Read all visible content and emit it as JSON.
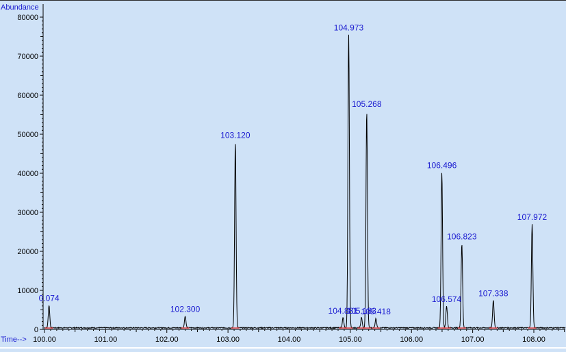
{
  "chart_data": {
    "type": "line",
    "ylabel": "Abundance",
    "xlabel": "Time-->",
    "xlim": [
      100.0,
      108.7
    ],
    "ylim": [
      0,
      81000
    ],
    "x_ticks": [
      "100.00",
      "101.00",
      "102.00",
      "103.00",
      "104.00",
      "105.00",
      "106.00",
      "107.00",
      "108.00"
    ],
    "y_ticks": [
      "0",
      "10000",
      "20000",
      "30000",
      "40000",
      "50000",
      "60000",
      "70000",
      "80000"
    ],
    "baseline": 400,
    "peaks": [
      {
        "label": "0.074",
        "time": 100.074,
        "abundance": 6200
      },
      {
        "label": "102.300",
        "time": 102.3,
        "abundance": 3400
      },
      {
        "label": "103.120",
        "time": 103.12,
        "abundance": 48000
      },
      {
        "label": "104.881",
        "time": 104.881,
        "abundance": 3000
      },
      {
        "label": "104.973",
        "time": 104.973,
        "abundance": 75500
      },
      {
        "label": "105.183",
        "time": 105.183,
        "abundance": 3000
      },
      {
        "label": "105.268",
        "time": 105.268,
        "abundance": 56000
      },
      {
        "label": "105.418",
        "time": 105.418,
        "abundance": 2800
      },
      {
        "label": "106.496",
        "time": 106.496,
        "abundance": 40300
      },
      {
        "label": "106.574",
        "time": 106.574,
        "abundance": 6000
      },
      {
        "label": "106.823",
        "time": 106.823,
        "abundance": 22000
      },
      {
        "label": "107.338",
        "time": 107.338,
        "abundance": 7500
      },
      {
        "label": "107.972",
        "time": 107.972,
        "abundance": 27000
      }
    ],
    "grid": false,
    "colors": {
      "background": "#cfe2f7",
      "trace": "#000000",
      "label": "#1a1ad0",
      "baseline_marker": "#e04040"
    }
  }
}
